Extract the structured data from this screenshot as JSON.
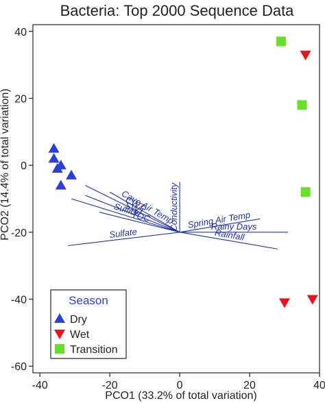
{
  "chart_data": {
    "type": "scatter",
    "title": "Bacteria: Top 2000 Sequence Data",
    "xlabel": "PCO1 (33.2% of total variation)",
    "ylabel": "PCO2 (14.4% of total variation)",
    "xlim": [
      -42,
      40
    ],
    "ylim": [
      -62,
      42
    ],
    "xticks": [
      -40,
      -20,
      0,
      20,
      40
    ],
    "yticks": [
      -60,
      -40,
      -20,
      0,
      20,
      40
    ],
    "grid": false,
    "legend": {
      "title": "Season",
      "placement": "bottom-left",
      "entries": [
        {
          "label": "Dry",
          "marker": "triangle-up",
          "color": "#2b3fd6"
        },
        {
          "label": "Wet",
          "marker": "triangle-down",
          "color": "#e8141c"
        },
        {
          "label": "Transition",
          "marker": "square",
          "color": "#66e028"
        }
      ]
    },
    "series": [
      {
        "name": "Dry",
        "marker": "triangle-up",
        "color": "#2b3fd6",
        "points": [
          [
            -36,
            5
          ],
          [
            -36,
            2
          ],
          [
            -34,
            0
          ],
          [
            -35,
            -1
          ],
          [
            -31,
            -3
          ],
          [
            -34,
            -6
          ]
        ]
      },
      {
        "name": "Wet",
        "marker": "triangle-down",
        "color": "#e8141c",
        "points": [
          [
            36,
            33
          ],
          [
            30,
            -41
          ],
          [
            38,
            -40
          ]
        ]
      },
      {
        "name": "Transition",
        "marker": "square",
        "color": "#66e028",
        "points": [
          [
            29,
            37
          ],
          [
            35,
            18
          ],
          [
            36,
            -8
          ]
        ]
      }
    ],
    "vectors": {
      "origin": [
        0,
        -20
      ],
      "color": "#2233aa",
      "items": [
        {
          "label": "Conductivity",
          "end": [
            0,
            -5
          ]
        },
        {
          "label": "CWT",
          "end": [
            -27,
            -6
          ]
        },
        {
          "label": "Cave Air Temp",
          "end": [
            -20,
            -8
          ]
        },
        {
          "label": "SWT",
          "end": [
            -27,
            -9
          ]
        },
        {
          "label": "Sulfide",
          "end": [
            -31,
            -10
          ]
        },
        {
          "label": "TOC",
          "end": [
            -23,
            -14
          ]
        },
        {
          "label": "Sulfate",
          "end": [
            -32,
            -24
          ]
        },
        {
          "label": "Spring Air Temp",
          "end": [
            23,
            -16
          ]
        },
        {
          "label": "Rainy Days",
          "end": [
            31,
            -20
          ]
        },
        {
          "label": "Rainfall",
          "end": [
            28,
            -25
          ]
        }
      ]
    }
  }
}
